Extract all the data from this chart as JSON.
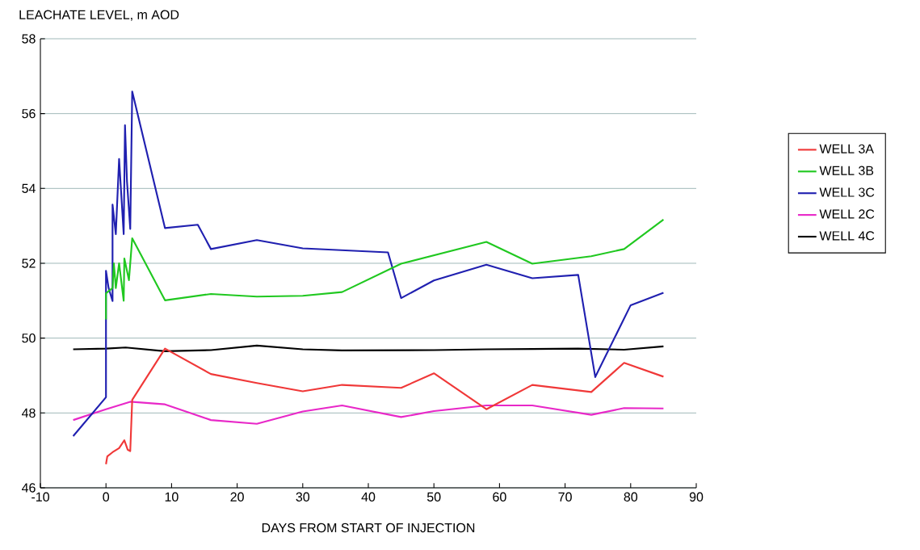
{
  "chart_data": {
    "type": "line",
    "ylabel": "LEACHATE LEVEL, m AOD",
    "xlabel": "DAYS FROM START OF INJECTION",
    "xlim": [
      -10,
      90
    ],
    "xticks": [
      -10,
      0,
      10,
      20,
      30,
      40,
      50,
      60,
      70,
      80,
      90
    ],
    "ylim": [
      46,
      58
    ],
    "yticks": [
      46,
      48,
      50,
      52,
      54,
      56,
      58
    ],
    "grid": "y",
    "legend": "right",
    "marker": "none",
    "line_style": "solid",
    "series": [
      {
        "name": "WELL 3A",
        "color": "#f03838",
        "x": [
          0,
          0.2,
          1,
          2,
          2.8,
          3.3,
          3.7,
          4,
          9,
          16,
          23,
          30,
          36,
          45,
          50,
          58,
          65,
          74,
          79,
          85
        ],
        "values": [
          46.63,
          46.84,
          46.95,
          47.06,
          47.27,
          47.02,
          46.98,
          48.35,
          49.72,
          49.04,
          48.8,
          48.58,
          48.75,
          48.67,
          49.06,
          48.1,
          48.75,
          48.56,
          49.34,
          48.97
        ]
      },
      {
        "name": "WELL 3B",
        "color": "#20c820",
        "x": [
          0,
          0,
          1,
          1.2,
          1.5,
          2,
          2.7,
          2.8,
          3.5,
          4,
          9,
          16,
          23,
          30,
          36,
          45,
          58,
          65,
          74,
          79,
          85
        ],
        "values": [
          50.5,
          51.2,
          51.34,
          52.0,
          51.34,
          52.0,
          51.0,
          52.13,
          51.55,
          52.67,
          51.01,
          51.18,
          51.11,
          51.13,
          51.23,
          51.99,
          52.57,
          51.99,
          52.19,
          52.38,
          53.17
        ]
      },
      {
        "name": "WELL 3C",
        "color": "#2020b0",
        "x": [
          -5,
          0,
          0,
          0.4,
          1,
          1,
          1.5,
          2,
          2.7,
          2.9,
          3.2,
          3.7,
          4,
          9,
          14,
          16,
          23,
          30,
          43,
          45,
          50,
          58,
          65,
          72,
          74.6,
          80,
          85
        ],
        "values": [
          47.38,
          48.42,
          51.8,
          51.34,
          50.99,
          53.57,
          52.78,
          54.79,
          52.78,
          55.69,
          54.2,
          52.92,
          56.59,
          52.94,
          53.03,
          52.38,
          52.62,
          52.4,
          52.29,
          51.07,
          51.54,
          51.96,
          51.6,
          51.69,
          48.96,
          50.88,
          51.21
        ]
      },
      {
        "name": "WELL 2C",
        "color": "#e828c8",
        "x": [
          -5,
          0,
          3.7,
          9,
          16,
          23,
          30,
          36,
          45,
          50,
          58,
          65,
          74,
          79,
          85
        ],
        "values": [
          47.81,
          48.1,
          48.3,
          48.23,
          47.81,
          47.71,
          48.04,
          48.2,
          47.89,
          48.05,
          48.2,
          48.2,
          47.95,
          48.13,
          48.12
        ]
      },
      {
        "name": "WELL 4C",
        "color": "#000000",
        "x": [
          -5,
          0,
          3,
          9,
          16,
          23,
          30,
          36,
          50,
          58,
          65,
          72,
          79,
          85
        ],
        "values": [
          49.7,
          49.72,
          49.75,
          49.65,
          49.68,
          49.8,
          49.7,
          49.67,
          49.68,
          49.7,
          49.71,
          49.72,
          49.69,
          49.78
        ]
      }
    ]
  }
}
